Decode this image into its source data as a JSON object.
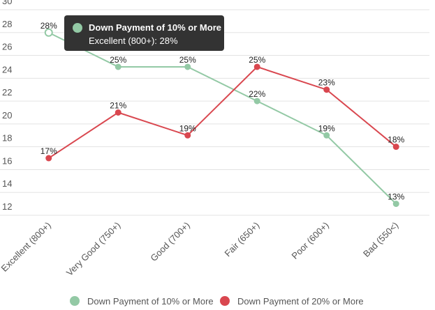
{
  "chart_data": {
    "type": "line",
    "categories": [
      "Excellent (800+)",
      "Very Good (750+)",
      "Good (700+)",
      "Fair (650+)",
      "Poor (600+)",
      "Bad (550<)"
    ],
    "series": [
      {
        "name": "Down Payment of 10% or More",
        "color": "#93c9a5",
        "values": [
          28,
          25,
          25,
          22,
          19,
          13
        ],
        "value_labels": [
          "28%",
          "25%",
          "25%",
          "22%",
          "19%",
          "13%"
        ]
      },
      {
        "name": "Down Payment of 20% or More",
        "color": "#d9474f",
        "values": [
          17,
          21,
          19,
          25,
          23,
          18
        ],
        "value_labels": [
          "17%",
          "21%",
          "19%",
          "25%",
          "23%",
          "18%"
        ]
      }
    ],
    "ylim": [
      12,
      30
    ],
    "yticks": [
      12,
      14,
      16,
      18,
      20,
      22,
      24,
      26,
      28,
      30
    ],
    "grid": true,
    "legend": "bottom",
    "tooltip": {
      "text": "Excellent (800+): 28%"
    }
  }
}
